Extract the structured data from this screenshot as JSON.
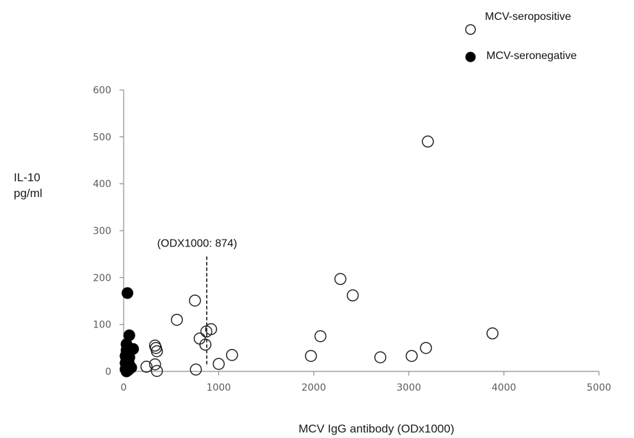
{
  "chart_data": {
    "type": "scatter",
    "xlabel": "MCV IgG antibody  (ODx1000)",
    "ylabel_line1": "IL-10",
    "ylabel_line2": "pg/ml",
    "xlim": [
      0,
      5000
    ],
    "ylim": [
      0,
      600
    ],
    "xticks": [
      0,
      1000,
      2000,
      3000,
      4000,
      5000
    ],
    "yticks": [
      0,
      100,
      200,
      300,
      400,
      500,
      600
    ],
    "grid": false,
    "legend_placement": "top-right",
    "annotation": {
      "label": "(ODX1000: 874)",
      "x": 874,
      "y_from": 15,
      "y_to": 245
    },
    "series": [
      {
        "name": "MCV-seropositive",
        "marker": "open-circle",
        "color": "#222222",
        "points": [
          [
            3200,
            490
          ],
          [
            2280,
            197
          ],
          [
            2410,
            162
          ],
          [
            3880,
            81
          ],
          [
            3180,
            50
          ],
          [
            3030,
            33
          ],
          [
            2700,
            30
          ],
          [
            2070,
            75
          ],
          [
            1970,
            33
          ],
          [
            1140,
            35
          ],
          [
            1000,
            16
          ],
          [
            920,
            90
          ],
          [
            870,
            85
          ],
          [
            860,
            57
          ],
          [
            800,
            70
          ],
          [
            750,
            151
          ],
          [
            760,
            4
          ],
          [
            560,
            110
          ],
          [
            330,
            55
          ],
          [
            340,
            50
          ],
          [
            350,
            43
          ],
          [
            330,
            15
          ],
          [
            350,
            1
          ],
          [
            240,
            10
          ]
        ]
      },
      {
        "name": "MCV-seronegative",
        "marker": "filled-circle",
        "color": "#000000",
        "points": [
          [
            40,
            167
          ],
          [
            60,
            77
          ],
          [
            30,
            58
          ],
          [
            80,
            47
          ],
          [
            100,
            48
          ],
          [
            30,
            45
          ],
          [
            50,
            38
          ],
          [
            20,
            33
          ],
          [
            60,
            30
          ],
          [
            30,
            25
          ],
          [
            50,
            22
          ],
          [
            20,
            18
          ],
          [
            60,
            14
          ],
          [
            30,
            10
          ],
          [
            80,
            8
          ],
          [
            20,
            5
          ],
          [
            50,
            3
          ],
          [
            30,
            0
          ]
        ]
      }
    ]
  }
}
